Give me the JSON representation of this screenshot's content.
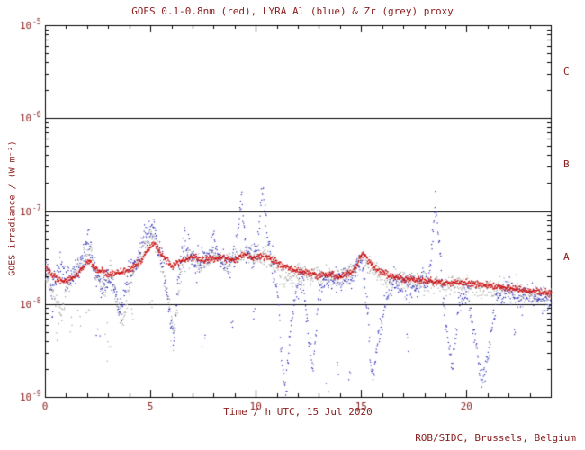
{
  "title": "GOES 0.1-0.8nm (red), LYRA Al (blue) & Zr (grey) proxy",
  "credit": "ROB/SIDC, Brussels, Belgium",
  "chart_data": {
    "type": "scatter",
    "title": "GOES 0.1-0.8nm (red), LYRA Al (blue) & Zr (grey) proxy",
    "xlabel": "Time / h UTC, 15 Jul 2020",
    "ylabel": "GOES irradiance / (W m⁻²)",
    "xlim": [
      0,
      24
    ],
    "x_major_ticks": [
      0,
      5,
      10,
      15,
      20
    ],
    "x_minor_step": 1,
    "y_log_exponent_range": [
      -9,
      -5
    ],
    "y_decade_ticks": [
      -5,
      -6,
      -7,
      -8,
      -9
    ],
    "hlines_y": [
      1e-06,
      1e-07,
      1e-08
    ],
    "grid": false,
    "legend": "none (colors named in title)",
    "flare_classes": [
      {
        "label": "C",
        "y_mid": 3.16e-06
      },
      {
        "label": "B",
        "y_mid": 3.16e-07
      },
      {
        "label": "A",
        "y_mid": 3.16e-08
      }
    ],
    "colors": {
      "axis": "#000000",
      "text": "#8b2020",
      "background": "#ffffff",
      "goes_red": "#cc1414",
      "lyra_al_blue": "#2828b8",
      "lyra_zr_grey": "#a2a2a2"
    },
    "series": [
      {
        "name": "LYRA Zr proxy",
        "color": "#a2a2a2",
        "sigma_log10": 0.11,
        "points": [
          [
            0,
            2.2e-08
          ],
          [
            0.4,
            1.2e-08
          ],
          [
            0.8,
            8e-09
          ],
          [
            1.0,
            1.5e-08
          ],
          [
            1.4,
            2.2e-08
          ],
          [
            1.8,
            3e-08
          ],
          [
            2.1,
            4e-08
          ],
          [
            2.4,
            2.2e-08
          ],
          [
            2.8,
            1.4e-08
          ],
          [
            3.1,
            2.4e-08
          ],
          [
            3.4,
            1e-08
          ],
          [
            3.7,
            6e-09
          ],
          [
            4.0,
            1.6e-08
          ],
          [
            4.4,
            2.8e-08
          ],
          [
            4.8,
            4.5e-08
          ],
          [
            5.1,
            5.5e-08
          ],
          [
            5.4,
            3.5e-08
          ],
          [
            5.8,
            1.4e-08
          ],
          [
            6.1,
            5e-09
          ],
          [
            6.4,
            2.2e-08
          ],
          [
            6.8,
            3.4e-08
          ],
          [
            7.2,
            2.8e-08
          ],
          [
            7.6,
            3e-08
          ],
          [
            8.0,
            3.6e-08
          ],
          [
            8.5,
            2.8e-08
          ],
          [
            9.0,
            3e-08
          ],
          [
            9.5,
            3.6e-08
          ],
          [
            10.0,
            3.2e-08
          ],
          [
            10.5,
            3.4e-08
          ],
          [
            11.0,
            2.4e-08
          ],
          [
            11.5,
            1.8e-08
          ],
          [
            12.0,
            2.2e-08
          ],
          [
            12.5,
            2e-08
          ],
          [
            13,
            2e-08
          ],
          [
            14,
            1.9e-08
          ],
          [
            15,
            3e-08
          ],
          [
            16,
            2e-08
          ],
          [
            17,
            1.8e-08
          ],
          [
            18,
            1.7e-08
          ],
          [
            19,
            1.6e-08
          ],
          [
            20,
            1.6e-08
          ],
          [
            21,
            1.5e-08
          ],
          [
            22,
            1.4e-08
          ],
          [
            23,
            1.3e-08
          ],
          [
            24,
            1.2e-08
          ]
        ],
        "outliers": [
          [
            0.6,
            5e-09
          ],
          [
            1.2,
            6e-09
          ],
          [
            1.6,
            7e-09
          ],
          [
            2.0,
            8e-09
          ],
          [
            2.9,
            5e-09
          ],
          [
            3.0,
            3e-09
          ],
          [
            4.1,
            8e-09
          ],
          [
            5.0,
            9e-09
          ],
          [
            6.0,
            4e-09
          ]
        ]
      },
      {
        "name": "LYRA Al proxy",
        "color": "#2828b8",
        "sigma_log10": 0.13,
        "points": [
          [
            0,
            2.4e-08
          ],
          [
            0.3,
            1.6e-08
          ],
          [
            0.7,
            2.8e-08
          ],
          [
            1,
            1.8e-08
          ],
          [
            1.5,
            2.2e-08
          ],
          [
            1.8,
            3.5e-08
          ],
          [
            2,
            5e-08
          ],
          [
            2.2,
            3e-08
          ],
          [
            2.6,
            1.6e-08
          ],
          [
            3,
            2e-08
          ],
          [
            3.4,
            1.2e-08
          ],
          [
            3.6,
            8e-09
          ],
          [
            3.8,
            1.8e-08
          ],
          [
            4.2,
            2.6e-08
          ],
          [
            4.6,
            4.5e-08
          ],
          [
            4.9,
            6.5e-08
          ],
          [
            5.1,
            7e-08
          ],
          [
            5.3,
            4.5e-08
          ],
          [
            5.6,
            2.5e-08
          ],
          [
            5.9,
            8e-09
          ],
          [
            6.1,
            4e-09
          ],
          [
            6.3,
            2e-08
          ],
          [
            6.6,
            5e-08
          ],
          [
            6.9,
            3e-08
          ],
          [
            7.3,
            2.6e-08
          ],
          [
            7.7,
            3.3e-08
          ],
          [
            8.0,
            5e-08
          ],
          [
            8.3,
            3e-08
          ],
          [
            8.7,
            2.6e-08
          ],
          [
            9.0,
            3.2e-08
          ],
          [
            9.3,
            1.4e-07
          ],
          [
            9.5,
            4e-08
          ],
          [
            9.8,
            2.8e-08
          ],
          [
            10.1,
            5e-08
          ],
          [
            10.3,
            2e-07
          ],
          [
            10.5,
            6e-08
          ],
          [
            10.7,
            3e-08
          ],
          [
            11.0,
            1.5e-08
          ],
          [
            11.2,
            3e-09
          ],
          [
            11.4,
            1.2e-09
          ],
          [
            11.6,
            5e-09
          ],
          [
            11.9,
            1.5e-08
          ],
          [
            12.2,
            2e-08
          ],
          [
            12.5,
            4e-09
          ],
          [
            12.7,
            2e-09
          ],
          [
            13.0,
            1.6e-08
          ],
          [
            13.5,
            2e-08
          ],
          [
            14,
            1.8e-08
          ],
          [
            14.5,
            2e-08
          ],
          [
            15,
            3e-08
          ],
          [
            15.3,
            8e-09
          ],
          [
            15.5,
            1.5e-09
          ],
          [
            15.8,
            4e-09
          ],
          [
            16.1,
            1e-08
          ],
          [
            16.5,
            1.8e-08
          ],
          [
            17,
            1.6e-08
          ],
          [
            17.5,
            1.5e-08
          ],
          [
            18.2,
            2e-08
          ],
          [
            18.5,
            1.3e-07
          ],
          [
            18.7,
            4e-08
          ],
          [
            19.0,
            6e-09
          ],
          [
            19.3,
            2e-09
          ],
          [
            19.6,
            1e-08
          ],
          [
            20,
            1.5e-08
          ],
          [
            20.4,
            4e-09
          ],
          [
            20.7,
            1.5e-09
          ],
          [
            21.0,
            3e-09
          ],
          [
            21.4,
            1.2e-08
          ],
          [
            22,
            1.4e-08
          ],
          [
            22.5,
            1.2e-08
          ],
          [
            23,
            1.3e-08
          ],
          [
            23.5,
            1.1e-08
          ],
          [
            24,
            1e-08
          ]
        ],
        "outliers": [
          [
            0.4,
            9e-09
          ],
          [
            2.5,
            5e-09
          ],
          [
            7.5,
            4e-09
          ],
          [
            8.8,
            6e-09
          ],
          [
            9.9,
            8e-09
          ],
          [
            13.4,
            1.2e-09
          ],
          [
            13.9,
            2e-09
          ],
          [
            14.4,
            1.5e-09
          ],
          [
            17.2,
            4e-09
          ],
          [
            22.3,
            5e-09
          ]
        ]
      },
      {
        "name": "GOES 0.1-0.8nm",
        "color": "#cc1414",
        "sigma_log10": 0.035,
        "points": [
          [
            0,
            2.6e-08
          ],
          [
            0.3,
            2.1e-08
          ],
          [
            0.7,
            1.8e-08
          ],
          [
            1,
            1.8e-08
          ],
          [
            1.5,
            2.1e-08
          ],
          [
            1.9,
            2.8e-08
          ],
          [
            2.1,
            2.9e-08
          ],
          [
            2.4,
            2.4e-08
          ],
          [
            3,
            2.1e-08
          ],
          [
            3.5,
            2.2e-08
          ],
          [
            4,
            2.4e-08
          ],
          [
            4.5,
            2.9e-08
          ],
          [
            4.9,
            4e-08
          ],
          [
            5.2,
            4.6e-08
          ],
          [
            5.5,
            3.5e-08
          ],
          [
            6,
            2.6e-08
          ],
          [
            6.5,
            3e-08
          ],
          [
            7,
            3.3e-08
          ],
          [
            7.5,
            3e-08
          ],
          [
            8,
            3.1e-08
          ],
          [
            8.5,
            3.2e-08
          ],
          [
            9,
            3e-08
          ],
          [
            9.4,
            3.5e-08
          ],
          [
            9.8,
            3.1e-08
          ],
          [
            10.2,
            3.3e-08
          ],
          [
            10.6,
            3.2e-08
          ],
          [
            11,
            2.8e-08
          ],
          [
            11.5,
            2.5e-08
          ],
          [
            12,
            2.3e-08
          ],
          [
            12.5,
            2.2e-08
          ],
          [
            13,
            2.1e-08
          ],
          [
            13.5,
            2.1e-08
          ],
          [
            14,
            2e-08
          ],
          [
            14.6,
            2.3e-08
          ],
          [
            15,
            3.5e-08
          ],
          [
            15.2,
            3.3e-08
          ],
          [
            15.6,
            2.5e-08
          ],
          [
            16,
            2.2e-08
          ],
          [
            16.5,
            2e-08
          ],
          [
            17,
            1.9e-08
          ],
          [
            18,
            1.8e-08
          ],
          [
            19,
            1.7e-08
          ],
          [
            20,
            1.7e-08
          ],
          [
            21,
            1.6e-08
          ],
          [
            22,
            1.5e-08
          ],
          [
            23,
            1.4e-08
          ],
          [
            24,
            1.3e-08
          ]
        ],
        "outliers": []
      }
    ]
  }
}
